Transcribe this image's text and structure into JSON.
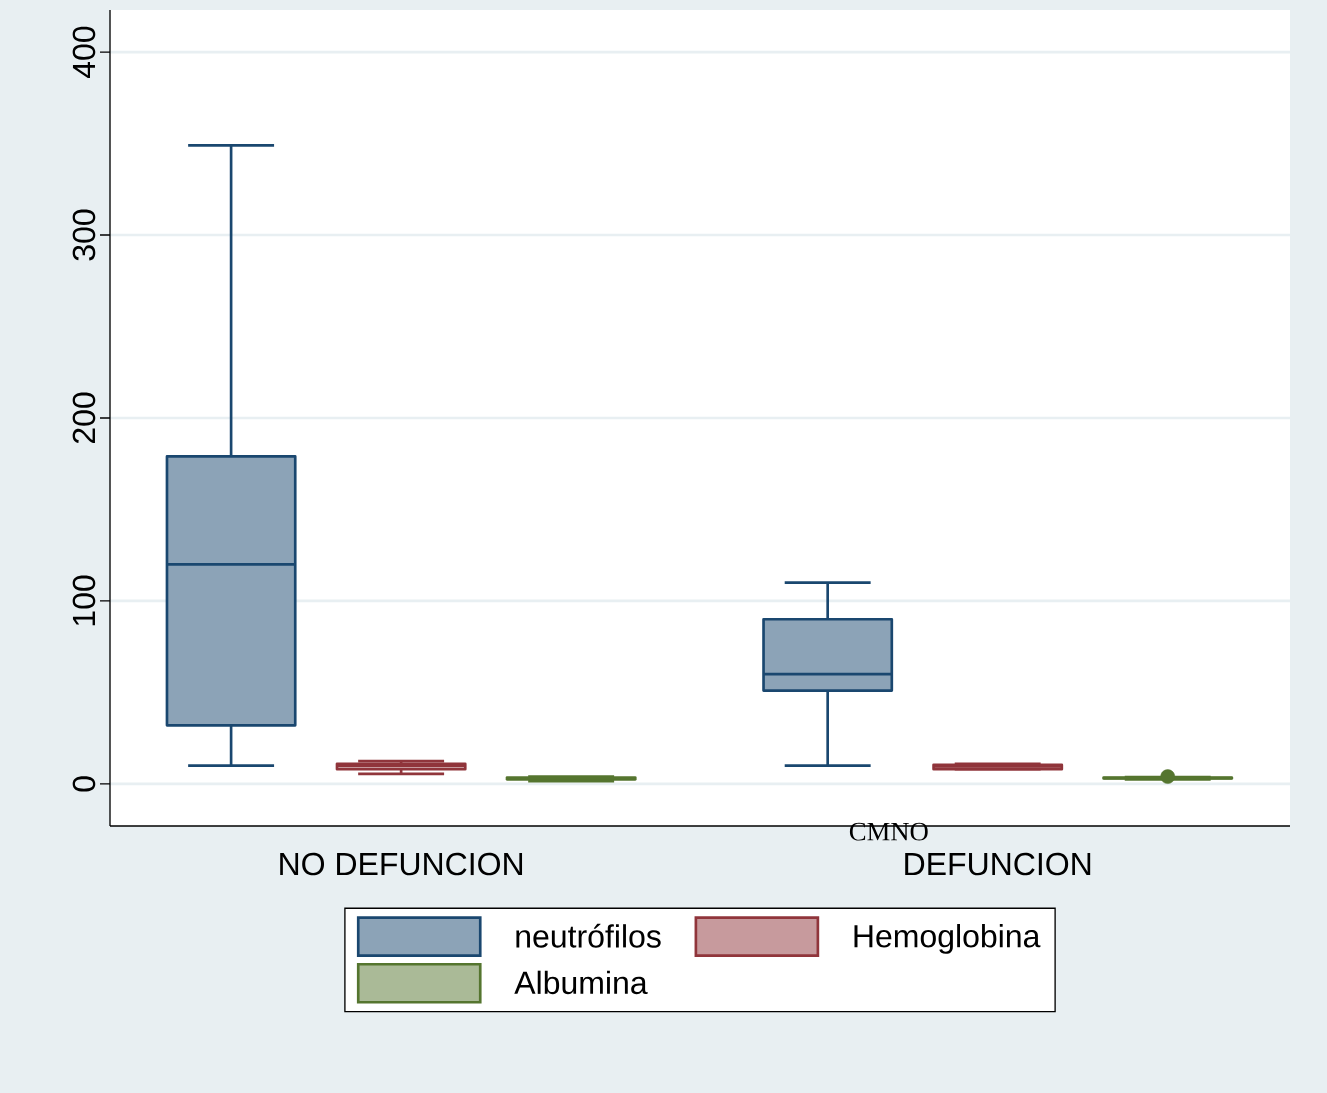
{
  "chart_data": {
    "type": "box",
    "xlabel": "CMNO",
    "categories": [
      "NO DEFUNCION",
      "DEFUNCION"
    ],
    "ylim": [
      -23,
      423
    ],
    "yticks": [
      0,
      100,
      200,
      300,
      400
    ],
    "grid": "y",
    "legend": "bottom",
    "series": [
      {
        "name": "neutrófilos",
        "color": "#1a476f",
        "boxes": [
          {
            "low": 10,
            "q1": 32,
            "median": 120,
            "q3": 179,
            "high": 349
          },
          {
            "low": 10,
            "q1": 51,
            "median": 60,
            "q3": 90,
            "high": 110
          }
        ]
      },
      {
        "name": "Hemoglobina",
        "color": "#90353b",
        "boxes": [
          {
            "low": 5.5,
            "q1": 8,
            "median": 10,
            "q3": 11,
            "high": 12.5
          },
          {
            "low": 8,
            "q1": 8,
            "median": 9.5,
            "q3": 10.5,
            "high": 11
          }
        ]
      },
      {
        "name": "Albumina",
        "color": "#55752f",
        "boxes": [
          {
            "low": 1.5,
            "q1": 2.5,
            "median": 3,
            "q3": 3.5,
            "high": 4
          },
          {
            "low": 2.5,
            "q1": 3,
            "median": 3.2,
            "q3": 3.5,
            "high": 3.8,
            "outliers": [
              4
            ]
          }
        ]
      }
    ]
  }
}
